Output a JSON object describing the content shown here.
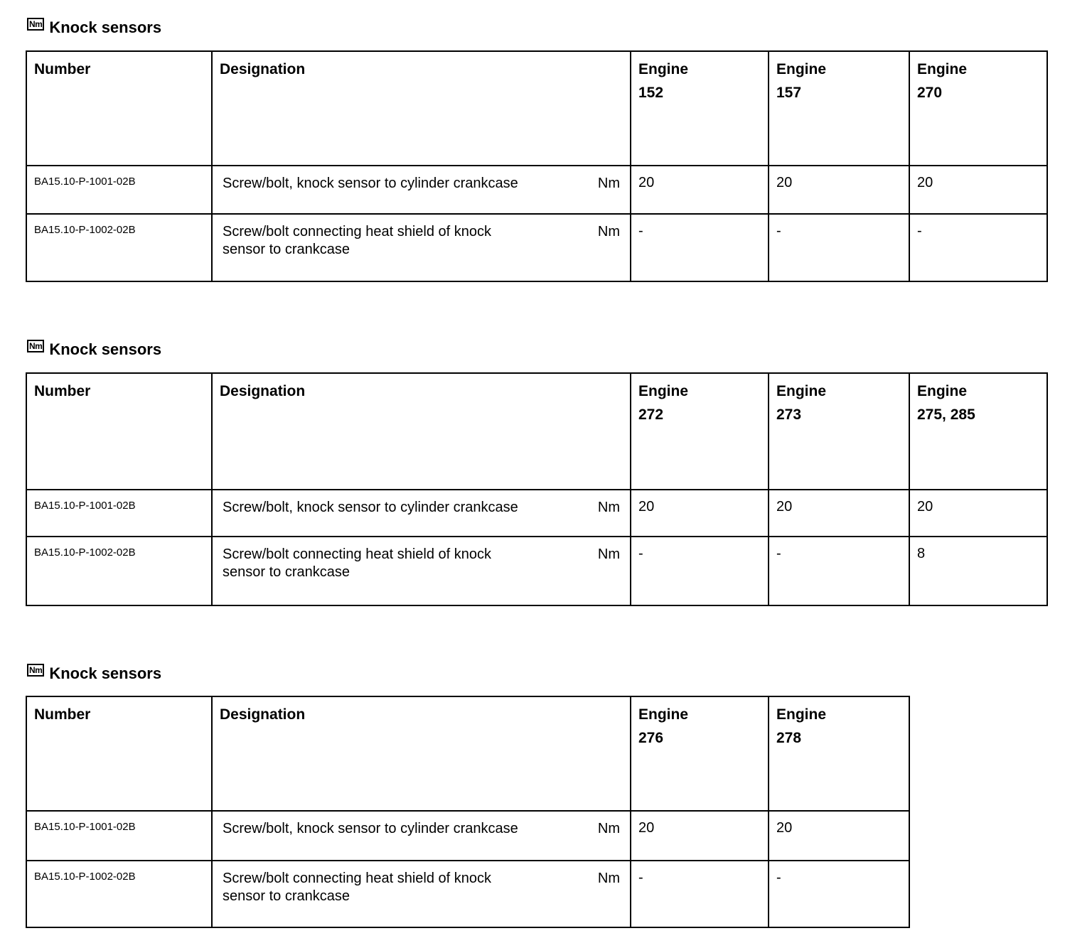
{
  "sections": [
    {
      "title": "Knock sensors",
      "icon": "Nm",
      "headers": {
        "number": "Number",
        "designation": "Designation",
        "engines": [
          [
            "Engine",
            "152"
          ],
          [
            "Engine",
            "157"
          ],
          [
            "Engine",
            "270"
          ]
        ]
      },
      "rows": [
        {
          "number": "BA15.10-P-1001-02B",
          "designation": "Screw/bolt, knock sensor to cylinder crankcase",
          "unit": "Nm",
          "values": [
            "20",
            "20",
            "20"
          ]
        },
        {
          "number": "BA15.10-P-1002-02B",
          "designation": "Screw/bolt connecting heat shield of knock sensor to crankcase",
          "unit": "Nm",
          "values": [
            "-",
            "-",
            "-"
          ]
        }
      ]
    },
    {
      "title": "Knock sensors",
      "icon": "Nm",
      "headers": {
        "number": "Number",
        "designation": "Designation",
        "engines": [
          [
            "Engine",
            "272"
          ],
          [
            "Engine",
            "273"
          ],
          [
            "Engine",
            "275, 285"
          ]
        ]
      },
      "rows": [
        {
          "number": "BA15.10-P-1001-02B",
          "designation": "Screw/bolt, knock sensor to cylinder crankcase",
          "unit": "Nm",
          "values": [
            "20",
            "20",
            "20"
          ]
        },
        {
          "number": "BA15.10-P-1002-02B",
          "designation": "Screw/bolt connecting heat shield of knock sensor to crankcase",
          "unit": "Nm",
          "values": [
            "-",
            "-",
            "8"
          ]
        }
      ]
    },
    {
      "title": "Knock sensors",
      "icon": "Nm",
      "headers": {
        "number": "Number",
        "designation": "Designation",
        "engines": [
          [
            "Engine",
            "276"
          ],
          [
            "Engine",
            "278"
          ]
        ]
      },
      "rows": [
        {
          "number": "BA15.10-P-1001-02B",
          "designation": "Screw/bolt, knock sensor to cylinder crankcase",
          "unit": "Nm",
          "values": [
            "20",
            "20"
          ]
        },
        {
          "number": "BA15.10-P-1002-02B",
          "designation": "Screw/bolt connecting heat shield of knock sensor to crankcase",
          "unit": "Nm",
          "values": [
            "-",
            "-"
          ]
        }
      ]
    }
  ]
}
